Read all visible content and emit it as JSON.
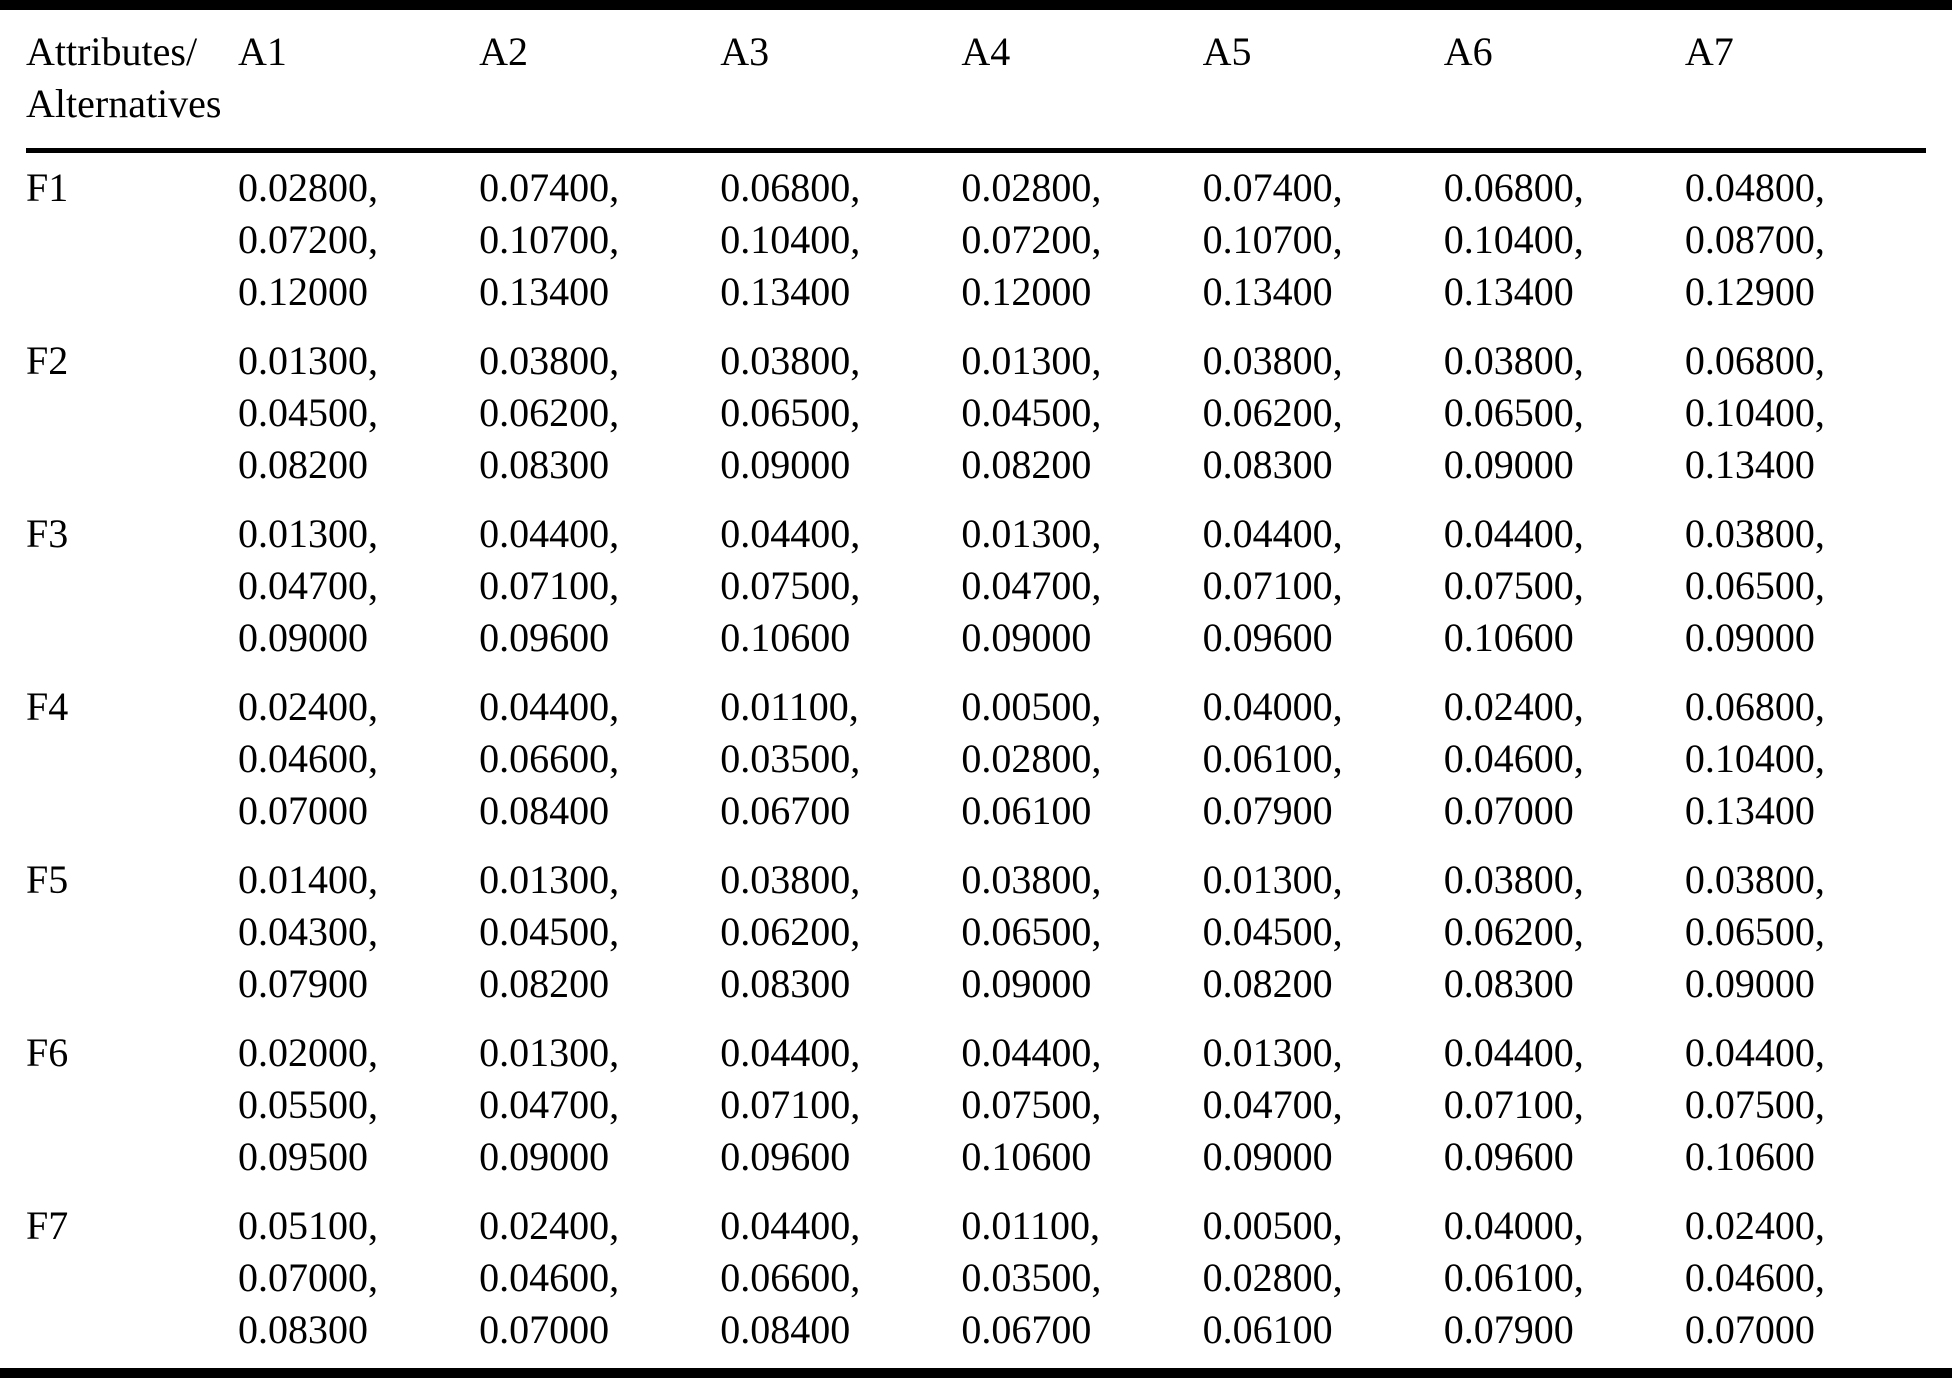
{
  "colors": {
    "text": "#000000",
    "background": "#ffffff",
    "rule": "#000000"
  },
  "table": {
    "corner_header": [
      "Attributes/",
      "Alternatives"
    ],
    "column_headers": [
      "A1",
      "A2",
      "A3",
      "A4",
      "A5",
      "A6",
      "A7"
    ],
    "rows": [
      {
        "label": "F1",
        "cells": [
          [
            "0.02800,",
            "0.07200,",
            "0.12000"
          ],
          [
            "0.07400,",
            "0.10700,",
            "0.13400"
          ],
          [
            "0.06800,",
            "0.10400,",
            "0.13400"
          ],
          [
            "0.02800,",
            "0.07200,",
            "0.12000"
          ],
          [
            "0.07400,",
            "0.10700,",
            "0.13400"
          ],
          [
            "0.06800,",
            "0.10400,",
            "0.13400"
          ],
          [
            "0.04800,",
            "0.08700,",
            "0.12900"
          ]
        ]
      },
      {
        "label": "F2",
        "cells": [
          [
            "0.01300,",
            "0.04500,",
            "0.08200"
          ],
          [
            "0.03800,",
            "0.06200,",
            "0.08300"
          ],
          [
            "0.03800,",
            "0.06500,",
            "0.09000"
          ],
          [
            "0.01300,",
            "0.04500,",
            "0.08200"
          ],
          [
            "0.03800,",
            "0.06200,",
            "0.08300"
          ],
          [
            "0.03800,",
            "0.06500,",
            "0.09000"
          ],
          [
            "0.06800,",
            "0.10400,",
            "0.13400"
          ]
        ]
      },
      {
        "label": "F3",
        "cells": [
          [
            "0.01300,",
            "0.04700,",
            "0.09000"
          ],
          [
            "0.04400,",
            "0.07100,",
            "0.09600"
          ],
          [
            "0.04400,",
            "0.07500,",
            "0.10600"
          ],
          [
            "0.01300,",
            "0.04700,",
            "0.09000"
          ],
          [
            "0.04400,",
            "0.07100,",
            "0.09600"
          ],
          [
            "0.04400,",
            "0.07500,",
            "0.10600"
          ],
          [
            "0.03800,",
            "0.06500,",
            "0.09000"
          ]
        ]
      },
      {
        "label": "F4",
        "cells": [
          [
            "0.02400,",
            "0.04600,",
            "0.07000"
          ],
          [
            "0.04400,",
            "0.06600,",
            "0.08400"
          ],
          [
            "0.01100,",
            "0.03500,",
            "0.06700"
          ],
          [
            "0.00500,",
            "0.02800,",
            "0.06100"
          ],
          [
            "0.04000,",
            "0.06100,",
            "0.07900"
          ],
          [
            "0.02400,",
            "0.04600,",
            "0.07000"
          ],
          [
            "0.06800,",
            "0.10400,",
            "0.13400"
          ]
        ]
      },
      {
        "label": "F5",
        "cells": [
          [
            "0.01400,",
            "0.04300,",
            "0.07900"
          ],
          [
            "0.01300,",
            "0.04500,",
            "0.08200"
          ],
          [
            "0.03800,",
            "0.06200,",
            "0.08300"
          ],
          [
            "0.03800,",
            "0.06500,",
            "0.09000"
          ],
          [
            "0.01300,",
            "0.04500,",
            "0.08200"
          ],
          [
            "0.03800,",
            "0.06200,",
            "0.08300"
          ],
          [
            "0.03800,",
            "0.06500,",
            "0.09000"
          ]
        ]
      },
      {
        "label": "F6",
        "cells": [
          [
            "0.02000,",
            "0.05500,",
            "0.09500"
          ],
          [
            "0.01300,",
            "0.04700,",
            "0.09000"
          ],
          [
            "0.04400,",
            "0.07100,",
            "0.09600"
          ],
          [
            "0.04400,",
            "0.07500,",
            "0.10600"
          ],
          [
            "0.01300,",
            "0.04700,",
            "0.09000"
          ],
          [
            "0.04400,",
            "0.07100,",
            "0.09600"
          ],
          [
            "0.04400,",
            "0.07500,",
            "0.10600"
          ]
        ]
      },
      {
        "label": "F7",
        "cells": [
          [
            "0.05100,",
            "0.07000,",
            "0.08300"
          ],
          [
            "0.02400,",
            "0.04600,",
            "0.07000"
          ],
          [
            "0.04400,",
            "0.06600,",
            "0.08400"
          ],
          [
            "0.01100,",
            "0.03500,",
            "0.06700"
          ],
          [
            "0.00500,",
            "0.02800,",
            "0.06100"
          ],
          [
            "0.04000,",
            "0.06100,",
            "0.07900"
          ],
          [
            "0.02400,",
            "0.04600,",
            "0.07000"
          ]
        ]
      }
    ]
  }
}
